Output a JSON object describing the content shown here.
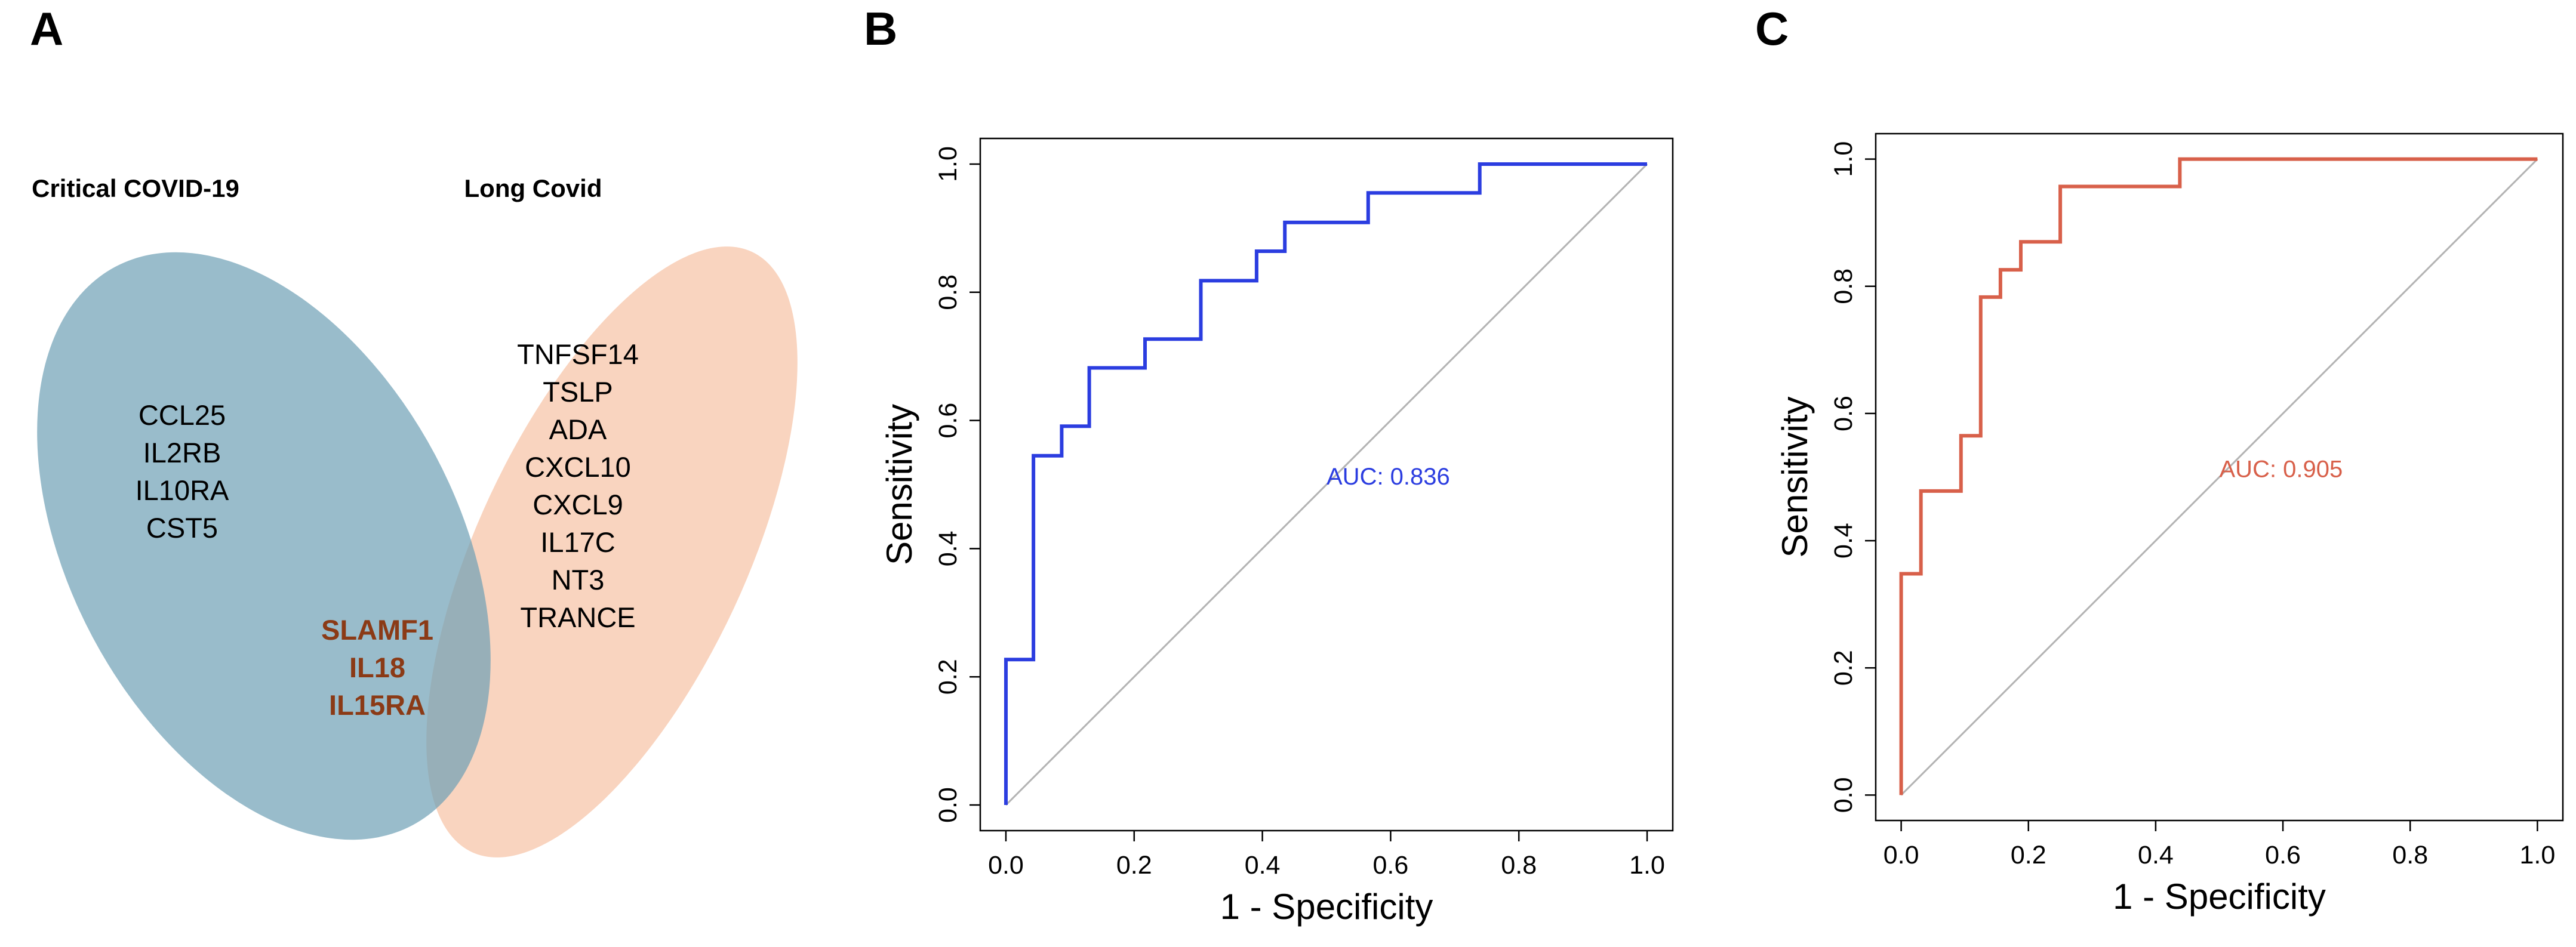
{
  "panels": {
    "a": {
      "letter": "A"
    },
    "b": {
      "letter": "B"
    },
    "c": {
      "letter": "C"
    }
  },
  "venn": {
    "left_title": "Critical COVID-19",
    "right_title": "Long Covid",
    "left_color": "#6d9fb5",
    "right_color": "#f7c2a4",
    "shared_color": "#8b3a16",
    "left_only": [
      "CCL25",
      "IL2RB",
      "IL10RA",
      "CST5"
    ],
    "right_only": [
      "TNFSF14",
      "TSLP",
      "ADA",
      "CXCL10",
      "CXCL9",
      "IL17C",
      "NT3",
      "TRANCE"
    ],
    "shared": [
      "SLAMF1",
      "IL18",
      "IL15RA"
    ]
  },
  "chart_data": [
    {
      "panel": "B",
      "type": "line",
      "title": "",
      "xlabel": "1 -  Specificity",
      "ylabel": "Sensitivity",
      "xlim": [
        -0.04,
        1.04
      ],
      "ylim": [
        -0.04,
        1.04
      ],
      "xticks": [
        "0.0",
        "0.2",
        "0.4",
        "0.6",
        "0.8",
        "1.0"
      ],
      "yticks": [
        "0.0",
        "0.2",
        "0.4",
        "0.6",
        "0.8",
        "1.0"
      ],
      "grid": false,
      "color": "#2b3de0",
      "auc_label": "AUC: 0.836",
      "auc_label_pos": [
        0.5,
        0.5
      ],
      "series": [
        {
          "name": "ROC",
          "x": [
            0,
            0,
            0.043,
            0.043,
            0.087,
            0.087,
            0.13,
            0.13,
            0.217,
            0.217,
            0.304,
            0.304,
            0.391,
            0.391,
            0.435,
            0.435,
            0.565,
            0.565,
            0.739,
            0.739,
            1.0
          ],
          "y": [
            0,
            0.227,
            0.227,
            0.545,
            0.545,
            0.591,
            0.591,
            0.682,
            0.682,
            0.727,
            0.727,
            0.818,
            0.818,
            0.864,
            0.864,
            0.909,
            0.909,
            0.955,
            0.955,
            1.0,
            1.0
          ]
        }
      ]
    },
    {
      "panel": "C",
      "type": "line",
      "title": "",
      "xlabel": "1 -  Specificity",
      "ylabel": "Sensitivity",
      "xlim": [
        -0.04,
        1.04
      ],
      "ylim": [
        -0.04,
        1.04
      ],
      "xticks": [
        "0.0",
        "0.2",
        "0.4",
        "0.6",
        "0.8",
        "1.0"
      ],
      "yticks": [
        "0.0",
        "0.2",
        "0.4",
        "0.6",
        "0.8",
        "1.0"
      ],
      "grid": false,
      "color": "#d8604a",
      "auc_label": "AUC: 0.905",
      "auc_label_pos": [
        0.5,
        0.5
      ],
      "series": [
        {
          "name": "ROC",
          "x": [
            0,
            0,
            0.031,
            0.031,
            0.094,
            0.094,
            0.125,
            0.125,
            0.156,
            0.156,
            0.188,
            0.188,
            0.25,
            0.25,
            0.438,
            0.438,
            1.0
          ],
          "y": [
            0,
            0.348,
            0.348,
            0.478,
            0.478,
            0.565,
            0.565,
            0.783,
            0.783,
            0.826,
            0.826,
            0.87,
            0.87,
            0.957,
            0.957,
            1.0,
            1.0
          ]
        }
      ]
    }
  ]
}
